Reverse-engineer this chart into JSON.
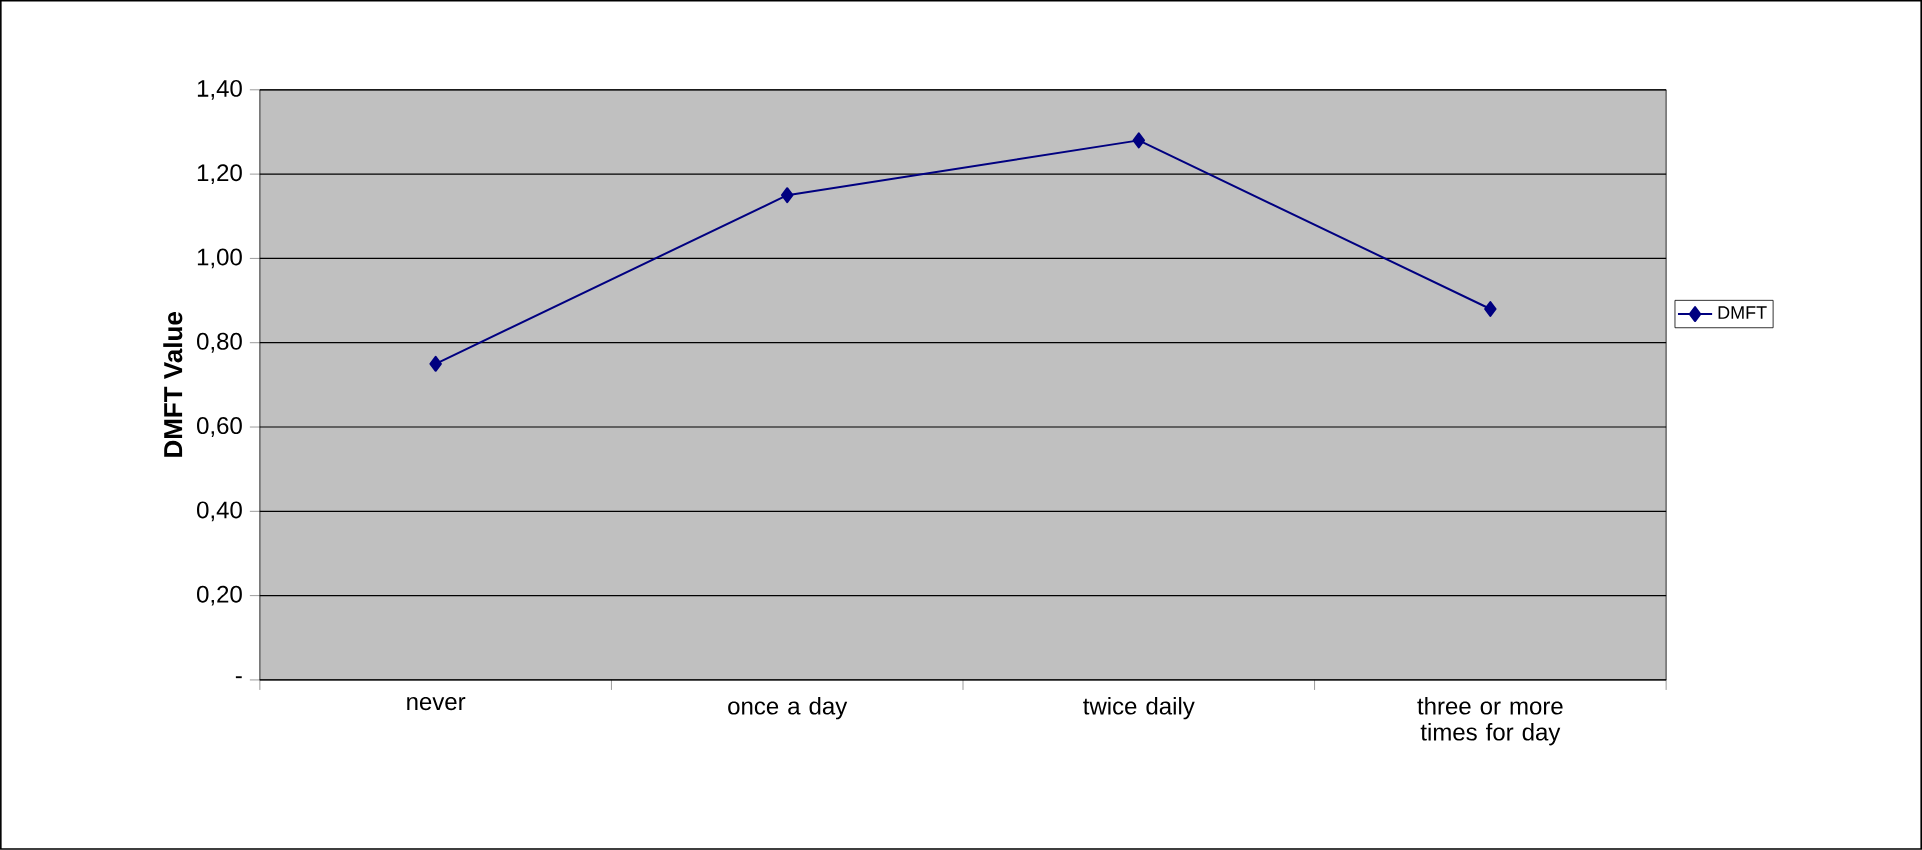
{
  "chart_data": {
    "type": "line",
    "ylabel": "DMFT Value",
    "categories": [
      "never",
      "once a day",
      "twice daily",
      "three or more times for day"
    ],
    "series": [
      {
        "name": "DMFT",
        "color": "#000080",
        "values": [
          0.75,
          1.15,
          1.28,
          0.88
        ]
      }
    ],
    "ylim": [
      0,
      1.4
    ],
    "yticks": [
      {
        "value": 0,
        "label": "-"
      },
      {
        "value": 0.2,
        "label": "0,20"
      },
      {
        "value": 0.4,
        "label": "0,40"
      },
      {
        "value": 0.6,
        "label": "0,60"
      },
      {
        "value": 0.8,
        "label": "0,80"
      },
      {
        "value": 1.0,
        "label": "1,00"
      },
      {
        "value": 1.2,
        "label": "1,20"
      },
      {
        "value": 1.4,
        "label": "1,40"
      }
    ],
    "grid": "y",
    "legend": "right",
    "marker": "diamond",
    "line_style": "solid"
  }
}
